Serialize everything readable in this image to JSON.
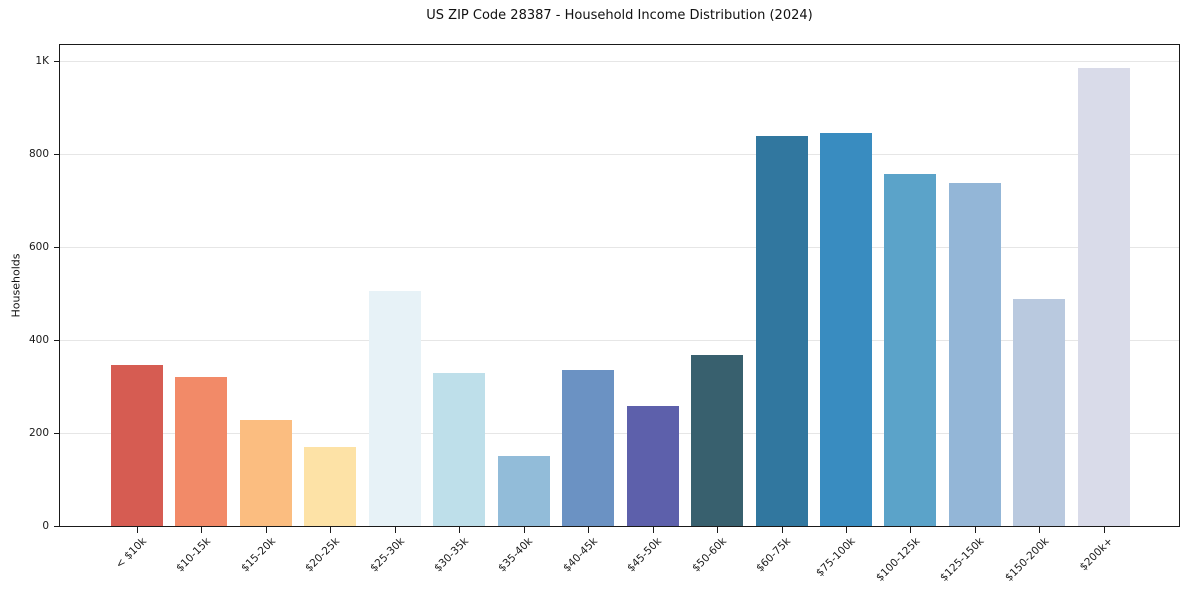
{
  "window": {
    "kind": "rendered-chart-figure",
    "background_color": "#ffffff"
  },
  "chart_data": {
    "type": "bar",
    "title": "US ZIP Code 28387 - Household Income Distribution (2024)",
    "xlabel": "",
    "ylabel": "Households",
    "categories": [
      "< $10k",
      "$10-15k",
      "$15-20k",
      "$20-25k",
      "$25-30k",
      "$30-35k",
      "$35-40k",
      "$40-45k",
      "$45-50k",
      "$50-60k",
      "$60-75k",
      "$75-100k",
      "$100-125k",
      "$125-150k",
      "$150-200k",
      "$200k+"
    ],
    "values": [
      346,
      320,
      228,
      171,
      506,
      330,
      150,
      335,
      258,
      368,
      838,
      844,
      756,
      737,
      489,
      985
    ],
    "bar_colors": [
      "#d65c52",
      "#f28a68",
      "#fbbd80",
      "#fde2a6",
      "#e7f2f7",
      "#bedfea",
      "#92bcd9",
      "#6b92c3",
      "#5d60ab",
      "#38606e",
      "#31779f",
      "#398cc0",
      "#5ba3c9",
      "#93b6d7",
      "#b9c9df",
      "#d9dbe9"
    ],
    "yticks": {
      "values": [
        0,
        200,
        400,
        600,
        800,
        1000
      ],
      "labels": [
        "0",
        "200",
        "400",
        "600",
        "800",
        "1K"
      ]
    },
    "ylim": [
      0,
      1034
    ],
    "grid": "horizontal",
    "grid_color": "#e6e6e6",
    "axis_color": "#1a1a1a",
    "legend": "none",
    "xtick_label_rotation_deg": 45
  }
}
